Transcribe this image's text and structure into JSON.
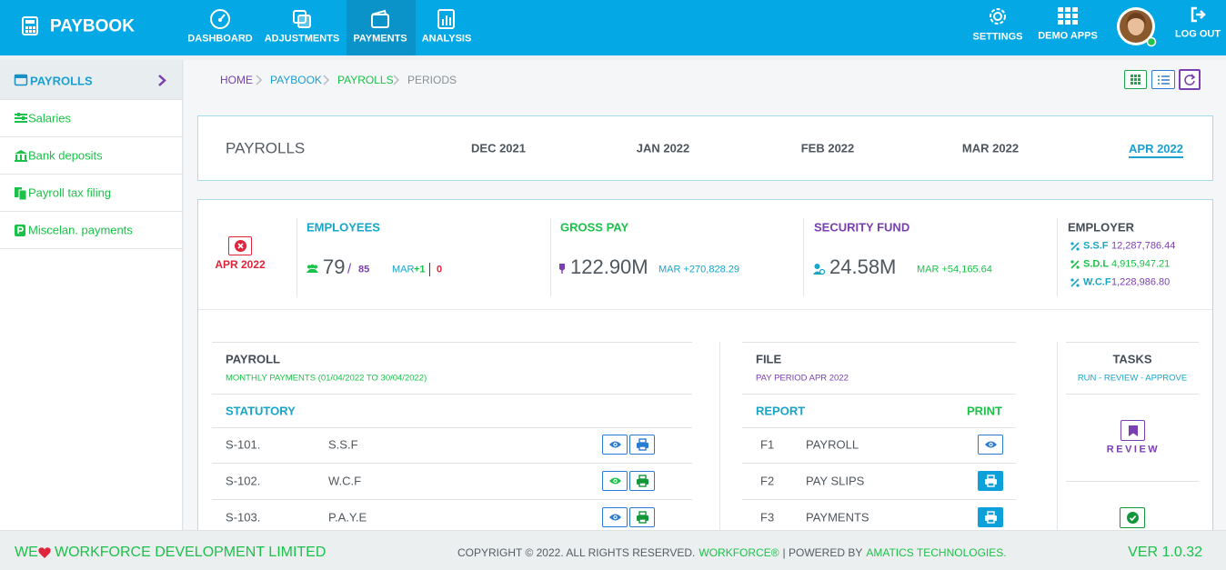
{
  "header": {
    "brand": "PAYBOOK",
    "nav": [
      "DASHBOARD",
      "ADJUSTMENTS",
      "PAYMENTS",
      "ANALYSIS"
    ],
    "actions": [
      "SETTINGS",
      "DEMO APPS",
      "LOG OUT"
    ]
  },
  "sidebar": {
    "title": "PAYROLLS",
    "items": [
      "Salaries",
      "Bank deposits",
      "Payroll tax filing",
      "Miscelan. payments"
    ]
  },
  "breadcrumb": [
    "HOME",
    "PAYBOOK",
    "PAYROLLS",
    "PERIODS"
  ],
  "periods": {
    "title": "PAYROLLS",
    "months": [
      "DEC 2021",
      "JAN 2022",
      "FEB 2022",
      "MAR 2022",
      "APR 2022"
    ]
  },
  "summary": {
    "period": "APR 2022",
    "employees": {
      "label": "EMPLOYEES",
      "count": "79",
      "separator": "/",
      "total": "85",
      "compare": "MAR",
      "added": "+1",
      "removed": "0"
    },
    "gross_pay": {
      "label": "GROSS PAY",
      "value": "122.90M",
      "change": "MAR +270,828.29"
    },
    "security_fund": {
      "label": "SECURITY FUND",
      "value": "24.58M",
      "change": "MAR +54,165.64"
    },
    "employer": {
      "label": "EMPLOYER",
      "items": [
        {
          "name": "S.S.F",
          "value": "12,287,786.44"
        },
        {
          "name": "S.D.L",
          "value": "4,915,947.21"
        },
        {
          "name": "W.C.F",
          "value": "1,228,986.80"
        }
      ]
    }
  },
  "payroll": {
    "title": "PAYROLL",
    "subtitle": "MONTHLY PAYMENTS (01/04/2022 TO 30/04/2022)",
    "section": "STATUTORY",
    "rows": [
      {
        "code": "S-101.",
        "name": "S.S.F"
      },
      {
        "code": "S-102.",
        "name": "W.C.F"
      },
      {
        "code": "S-103.",
        "name": "P.A.Y.E"
      }
    ]
  },
  "file": {
    "title": "FILE",
    "subtitle": "PAY PERIOD APR 2022",
    "report": "REPORT",
    "print": "PRINT",
    "rows": [
      {
        "code": "F1",
        "name": "PAYROLL"
      },
      {
        "code": "F2",
        "name": "PAY SLIPS"
      },
      {
        "code": "F3",
        "name": "PAYMENTS"
      }
    ]
  },
  "tasks": {
    "title": "TASKS",
    "subtitle": "RUN - REVIEW - APPROVE",
    "review": "REVIEW"
  },
  "footer": {
    "we": "WE",
    "company": "WORKFORCE DEVELOPMENT LIMITED",
    "copyright": "COPYRIGHT © 2022. ALL RIGHTS RESERVED.",
    "brand": "WORKFORCE®",
    "powered": "| POWERED BY",
    "vendor": "AMATICS TECHNOLOGIES.",
    "version": "VER 1.0.32"
  }
}
